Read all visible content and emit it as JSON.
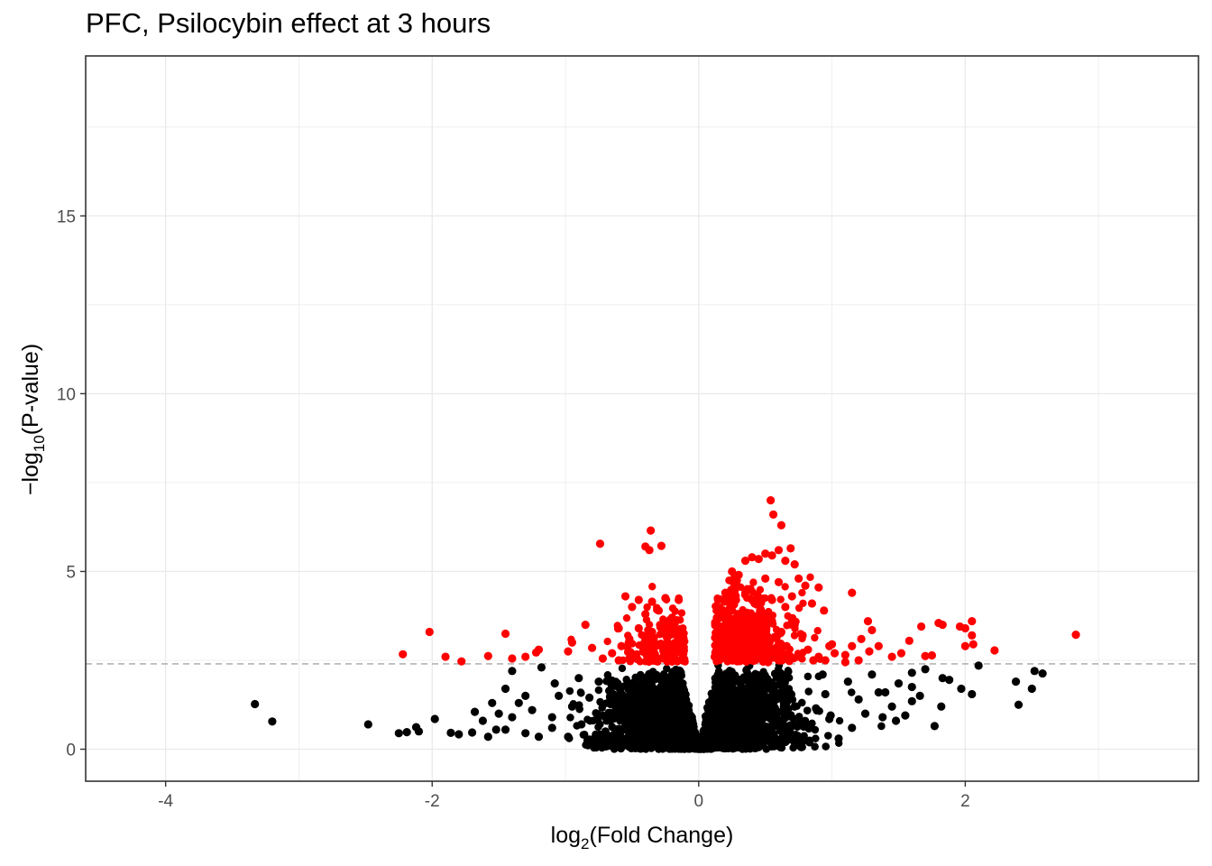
{
  "chart_data": {
    "type": "scatter",
    "title": "PFC, Psilocybin effect at 3 hours",
    "xlabel": {
      "pre": "log",
      "sub": "2",
      "post": "(Fold Change)"
    },
    "ylabel": {
      "pre": "−log",
      "sub": "10",
      "post": "(P-value)"
    },
    "xlim": [
      -4.6,
      3.75
    ],
    "ylim": [
      -0.9,
      19.5
    ],
    "xticks": [
      -4,
      -2,
      0,
      2
    ],
    "xtick_labels": [
      "-4",
      "-2",
      "0",
      "2"
    ],
    "yticks": [
      0,
      5,
      10,
      15
    ],
    "ytick_labels": [
      "0",
      "5",
      "10",
      "15"
    ],
    "grid": true,
    "threshold_y": 2.4,
    "colors": {
      "significant": "#ff0000",
      "not_significant": "#000000",
      "threshold": "#a6a6a6",
      "grid": "#ebebeb",
      "border": "#333333"
    },
    "series": [
      {
        "points": [
          [
            0.54,
            7.0
          ],
          [
            0.56,
            6.6
          ],
          [
            0.62,
            6.3
          ],
          [
            -0.36,
            6.15
          ],
          [
            -0.74,
            5.78
          ],
          [
            -0.4,
            5.7
          ],
          [
            -0.37,
            5.6
          ],
          [
            -0.28,
            5.72
          ],
          [
            0.5,
            5.5
          ],
          [
            0.55,
            5.45
          ],
          [
            0.69,
            5.65
          ],
          [
            0.6,
            5.6
          ],
          [
            0.4,
            5.4
          ],
          [
            0.35,
            5.3
          ],
          [
            0.45,
            5.35
          ],
          [
            0.65,
            5.3
          ],
          [
            0.72,
            5.2
          ],
          [
            0.25,
            5.0
          ],
          [
            0.3,
            4.9
          ],
          [
            0.5,
            4.8
          ],
          [
            0.6,
            4.7
          ],
          [
            0.75,
            4.8
          ],
          [
            0.8,
            4.6
          ],
          [
            0.9,
            4.55
          ],
          [
            1.15,
            4.4
          ],
          [
            0.94,
            3.9
          ],
          [
            0.2,
            4.4
          ],
          [
            0.28,
            4.2
          ],
          [
            0.35,
            4.4
          ],
          [
            0.42,
            4.1
          ],
          [
            0.55,
            4.2
          ],
          [
            0.65,
            4.0
          ],
          [
            0.7,
            4.3
          ],
          [
            0.85,
            4.1
          ],
          [
            0.72,
            3.5
          ],
          [
            -0.55,
            4.3
          ],
          [
            -0.45,
            4.2
          ],
          [
            -0.35,
            4.15
          ],
          [
            -0.25,
            4.25
          ],
          [
            -0.15,
            4.2
          ],
          [
            -0.5,
            4.0
          ],
          [
            -0.4,
            3.8
          ],
          [
            -0.3,
            3.9
          ],
          [
            -0.2,
            3.7
          ],
          [
            -0.45,
            3.4
          ],
          [
            -0.35,
            3.3
          ],
          [
            -0.25,
            3.5
          ],
          [
            -0.15,
            3.2
          ],
          [
            -0.38,
            3.0
          ],
          [
            -0.28,
            2.9
          ],
          [
            -0.18,
            2.8
          ],
          [
            -0.52,
            3.1
          ],
          [
            0.15,
            3.9
          ],
          [
            0.22,
            3.6
          ],
          [
            0.3,
            3.5
          ],
          [
            0.38,
            3.7
          ],
          [
            0.46,
            3.4
          ],
          [
            0.55,
            3.6
          ],
          [
            0.62,
            3.3
          ],
          [
            0.7,
            3.6
          ],
          [
            0.78,
            3.2
          ],
          [
            0.18,
            3.1
          ],
          [
            0.25,
            2.9
          ],
          [
            0.33,
            3.0
          ],
          [
            0.42,
            2.8
          ],
          [
            0.5,
            3.1
          ],
          [
            0.58,
            2.7
          ],
          [
            0.66,
            2.9
          ],
          [
            0.74,
            2.6
          ],
          [
            0.82,
            2.8
          ],
          [
            0.12,
            2.6
          ],
          [
            0.2,
            2.55
          ],
          [
            0.28,
            2.7
          ],
          [
            0.36,
            2.5
          ],
          [
            0.44,
            2.6
          ],
          [
            0.52,
            2.45
          ],
          [
            0.6,
            2.5
          ],
          [
            0.68,
            2.48
          ],
          [
            0.86,
            2.5
          ],
          [
            -0.65,
            2.7
          ],
          [
            -0.58,
            2.9
          ],
          [
            -0.48,
            2.6
          ],
          [
            -0.4,
            2.7
          ],
          [
            -0.32,
            2.5
          ],
          [
            -0.22,
            2.6
          ],
          [
            -0.12,
            2.5
          ],
          [
            -0.6,
            2.5
          ],
          [
            -0.85,
            3.5
          ],
          [
            -0.6,
            3.4
          ],
          [
            -0.95,
            3.0
          ],
          [
            -0.8,
            2.85
          ],
          [
            -0.72,
            2.55
          ],
          [
            -1.2,
            2.8
          ],
          [
            -1.3,
            2.6
          ],
          [
            -1.58,
            2.62
          ],
          [
            -1.4,
            2.55
          ],
          [
            -1.9,
            2.6
          ],
          [
            -2.22,
            2.67
          ],
          [
            -2.02,
            3.3
          ],
          [
            -1.45,
            3.25
          ],
          [
            -1.78,
            2.47
          ],
          [
            -0.98,
            2.75
          ],
          [
            -1.22,
            2.72
          ],
          [
            0.95,
            2.5
          ],
          [
            0.98,
            2.9
          ],
          [
            1.02,
            2.7
          ],
          [
            1.1,
            2.65
          ],
          [
            1.15,
            2.9
          ],
          [
            1.22,
            3.1
          ],
          [
            1.27,
            3.6
          ],
          [
            1.3,
            3.35
          ],
          [
            1.2,
            2.5
          ],
          [
            1.35,
            2.9
          ],
          [
            1.45,
            2.6
          ],
          [
            1.52,
            2.7
          ],
          [
            1.58,
            3.05
          ],
          [
            1.7,
            2.62
          ],
          [
            1.75,
            2.64
          ],
          [
            1.67,
            3.45
          ],
          [
            1.8,
            3.55
          ],
          [
            1.83,
            3.5
          ],
          [
            1.96,
            3.45
          ],
          [
            2.0,
            3.4
          ],
          [
            2.05,
            3.6
          ],
          [
            2.05,
            3.2
          ],
          [
            2.06,
            2.95
          ],
          [
            2.0,
            2.9
          ],
          [
            2.22,
            2.78
          ],
          [
            2.83,
            3.22
          ],
          [
            1.0,
            2.95
          ],
          [
            1.28,
            2.75
          ],
          [
            0.9,
            2.6
          ],
          [
            1.1,
            2.45
          ]
        ]
      },
      {
        "points": [
          [
            -3.33,
            1.27
          ],
          [
            -3.2,
            0.78
          ],
          [
            -2.48,
            0.7
          ],
          [
            -2.12,
            0.62
          ],
          [
            -2.25,
            0.45
          ],
          [
            -2.19,
            0.48
          ],
          [
            -2.1,
            0.5
          ],
          [
            -1.98,
            0.85
          ],
          [
            -1.86,
            0.46
          ],
          [
            -1.8,
            0.42
          ],
          [
            -1.7,
            0.47
          ],
          [
            -1.68,
            1.05
          ],
          [
            -1.62,
            0.8
          ],
          [
            -1.5,
            1.0
          ],
          [
            -1.45,
            1.7
          ],
          [
            -1.4,
            2.2
          ],
          [
            -1.3,
            1.5
          ],
          [
            -1.25,
            1.1
          ],
          [
            -1.58,
            0.35
          ],
          [
            -1.3,
            0.45
          ],
          [
            -1.1,
            0.6
          ],
          [
            -1.45,
            0.55
          ],
          [
            2.58,
            2.13
          ],
          [
            2.52,
            2.2
          ],
          [
            2.5,
            1.7
          ],
          [
            2.38,
            1.9
          ],
          [
            2.4,
            1.25
          ],
          [
            2.1,
            2.35
          ],
          [
            2.05,
            1.55
          ],
          [
            1.97,
            1.7
          ],
          [
            1.88,
            1.95
          ],
          [
            1.83,
            2.0
          ],
          [
            1.7,
            2.25
          ],
          [
            1.66,
            1.5
          ],
          [
            1.6,
            1.35
          ],
          [
            1.55,
            0.95
          ],
          [
            1.6,
            1.75
          ],
          [
            1.77,
            0.65
          ],
          [
            1.5,
            1.85
          ],
          [
            1.45,
            1.2
          ],
          [
            1.35,
            1.6
          ],
          [
            1.3,
            2.1
          ],
          [
            1.25,
            1.0
          ],
          [
            1.15,
            0.6
          ],
          [
            1.05,
            0.3
          ],
          [
            1.2,
            1.4
          ],
          [
            0.95,
            1.55
          ],
          [
            0.88,
            1.15
          ],
          [
            0.8,
            0.7
          ],
          [
            0.76,
            0.25
          ],
          [
            0.64,
            1.8
          ],
          [
            0.62,
            0.5
          ],
          [
            0.72,
            1.2
          ],
          [
            0.98,
            0.85
          ],
          [
            1.4,
            1.6
          ],
          [
            1.12,
            1.9
          ],
          [
            0.93,
            2.1
          ],
          [
            0.99,
            0.95
          ],
          [
            1.6,
            2.15
          ],
          [
            1.48,
            0.8
          ],
          [
            1.38,
            0.9
          ],
          [
            1.82,
            1.2
          ],
          [
            -1.05,
            1.5
          ],
          [
            -0.95,
            1.2
          ],
          [
            -0.88,
            0.7
          ],
          [
            -0.75,
            1.9
          ],
          [
            -0.7,
            0.5
          ],
          [
            -1.18,
            2.3
          ],
          [
            -1.08,
            1.85
          ],
          [
            -1.35,
            1.3
          ],
          [
            -1.2,
            0.35
          ],
          [
            -1.1,
            0.9
          ],
          [
            -1.55,
            1.3
          ],
          [
            -1.52,
            0.55
          ],
          [
            -0.98,
            0.35
          ],
          [
            -0.82,
            1.45
          ],
          [
            -0.9,
            2.0
          ],
          [
            -1.4,
            0.9
          ]
        ]
      }
    ]
  }
}
